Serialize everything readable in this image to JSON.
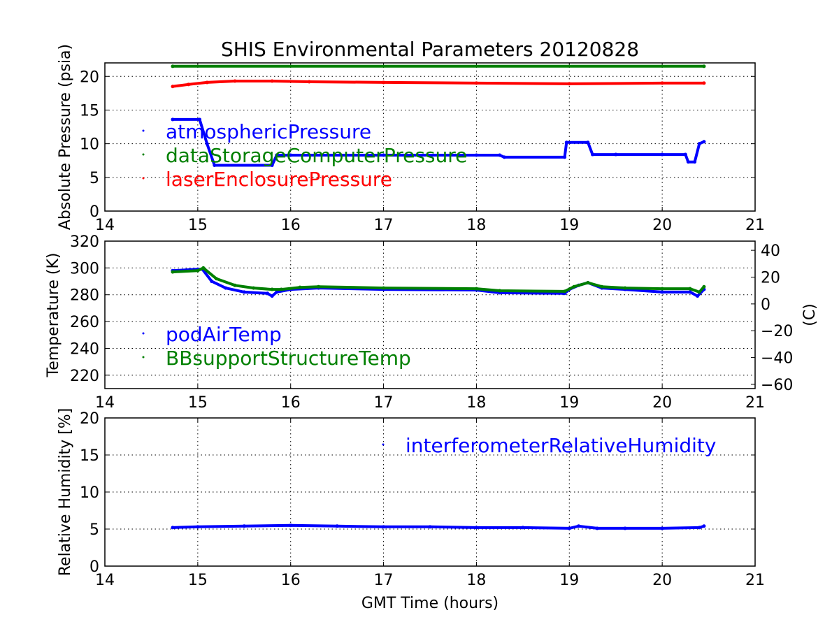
{
  "chart_data": [
    {
      "type": "scatter",
      "title": "SHIS Environmental Parameters 20120828",
      "xlabel": "",
      "ylabel": "Absolute Pressure (psia)",
      "xlim": [
        14,
        21
      ],
      "ylim": [
        0,
        22
      ],
      "xticks": [
        "14",
        "15",
        "16",
        "17",
        "18",
        "19",
        "20",
        "21"
      ],
      "yticks": [
        "0",
        "5",
        "10",
        "15",
        "20"
      ],
      "grid": true,
      "legend": "left",
      "series": [
        {
          "name": "atmosphericPressure",
          "color": "#0000ff",
          "x": [
            14.73,
            15.02,
            15.1,
            15.18,
            15.8,
            15.85,
            16.0,
            17.0,
            18.0,
            18.25,
            18.3,
            18.95,
            18.97,
            19.2,
            19.25,
            19.5,
            20.0,
            20.25,
            20.28,
            20.35,
            20.4,
            20.45
          ],
          "y": [
            13.6,
            13.6,
            10.0,
            6.8,
            6.8,
            8.3,
            8.3,
            8.3,
            8.3,
            8.3,
            8.0,
            8.0,
            10.2,
            10.2,
            8.4,
            8.4,
            8.4,
            8.4,
            7.3,
            7.3,
            10.0,
            10.3
          ]
        },
        {
          "name": "dataStorageComputerPressure",
          "color": "#008000",
          "x": [
            14.73,
            20.45
          ],
          "y": [
            21.5,
            21.5
          ]
        },
        {
          "name": "laserEnclosurePressure",
          "color": "#ff0000",
          "x": [
            14.73,
            14.9,
            15.1,
            15.4,
            15.8,
            16.2,
            17.0,
            18.0,
            19.0,
            20.0,
            20.45
          ],
          "y": [
            18.5,
            18.8,
            19.1,
            19.3,
            19.3,
            19.2,
            19.1,
            19.0,
            18.9,
            19.0,
            19.0
          ]
        }
      ]
    },
    {
      "type": "scatter",
      "title": "",
      "xlabel": "",
      "ylabel": "Temperature (K)",
      "y2label": "(C)",
      "xlim": [
        14,
        21
      ],
      "ylim": [
        210,
        320
      ],
      "y2lim": [
        -63.15,
        46.85
      ],
      "xticks": [
        "14",
        "15",
        "16",
        "17",
        "18",
        "19",
        "20",
        "21"
      ],
      "yticks": [
        "220",
        "240",
        "260",
        "280",
        "300",
        "320"
      ],
      "y2ticks": [
        "−60",
        "−40",
        "−20",
        "0",
        "20",
        "40"
      ],
      "grid": true,
      "legend": "left",
      "series": [
        {
          "name": "podAirTemp",
          "color": "#0000ff",
          "x": [
            14.73,
            15.0,
            15.05,
            15.15,
            15.3,
            15.5,
            15.75,
            15.8,
            15.85,
            16.0,
            16.3,
            17.0,
            18.0,
            18.25,
            18.95,
            19.0,
            19.1,
            19.2,
            19.35,
            19.6,
            20.0,
            20.3,
            20.38,
            20.45
          ],
          "y": [
            298,
            299,
            299,
            290,
            285,
            282,
            281,
            279,
            282,
            284,
            285,
            284,
            283.5,
            281.5,
            281,
            284,
            287,
            289,
            285,
            284,
            282,
            282,
            279,
            284
          ]
        },
        {
          "name": "BBsupportStructureTemp",
          "color": "#008000",
          "x": [
            14.73,
            15.0,
            15.06,
            15.2,
            15.4,
            15.6,
            15.8,
            15.9,
            16.1,
            16.3,
            17.0,
            18.0,
            18.25,
            18.95,
            19.05,
            19.2,
            19.35,
            19.6,
            20.0,
            20.3,
            20.4,
            20.45
          ],
          "y": [
            297,
            298,
            300,
            292,
            287,
            285,
            284,
            284,
            285.5,
            286,
            285,
            284.5,
            283,
            282.5,
            286,
            289,
            286,
            285,
            284.5,
            284.5,
            282,
            286
          ]
        }
      ]
    },
    {
      "type": "scatter",
      "title": "",
      "xlabel": "GMT Time (hours)",
      "ylabel": "Relative Humidity [%]",
      "xlim": [
        14,
        21
      ],
      "ylim": [
        0,
        20
      ],
      "xticks": [
        "14",
        "15",
        "16",
        "17",
        "18",
        "19",
        "20",
        "21"
      ],
      "yticks": [
        "0",
        "5",
        "10",
        "15",
        "20"
      ],
      "grid": true,
      "legend": "top-right",
      "series": [
        {
          "name": "interferometerRelativeHumidity",
          "color": "#0000ff",
          "x": [
            14.73,
            15.0,
            15.5,
            16.0,
            16.5,
            17.0,
            17.5,
            18.0,
            18.5,
            19.0,
            19.1,
            19.3,
            19.6,
            20.0,
            20.4,
            20.45
          ],
          "y": [
            5.2,
            5.3,
            5.4,
            5.5,
            5.4,
            5.3,
            5.3,
            5.2,
            5.2,
            5.1,
            5.4,
            5.1,
            5.1,
            5.1,
            5.2,
            5.4
          ]
        }
      ]
    }
  ]
}
